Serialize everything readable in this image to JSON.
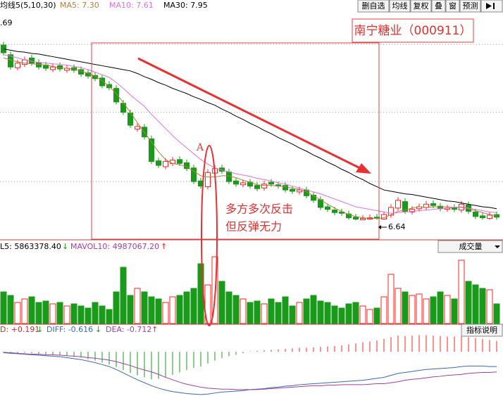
{
  "toolbar": {
    "buttons": [
      "删自选",
      "均线",
      "复权",
      "叠",
      "窗",
      "预测"
    ]
  },
  "chart_data": [
    {
      "type": "candlestick",
      "indicator": "均线5(5,10,30)",
      "title": "南宁糖业（000911）",
      "high_label": ".69",
      "low_label": "6.64",
      "annotation_point": "A",
      "annotation": [
        "多方多次反击",
        "但反弹无力"
      ],
      "ylim": [
        6.35,
        9.85
      ],
      "gridlines": [
        9.36,
        8.31,
        7.24
      ],
      "up_color": "#ff2020",
      "down_color": "#1a9a1a",
      "candles": {
        "open": [
          9.35,
          9.2,
          9.0,
          9.05,
          9.15,
          9.08,
          9.04,
          8.97,
          9.03,
          8.96,
          9.0,
          8.97,
          8.92,
          8.88,
          8.84,
          8.74,
          8.68,
          8.45,
          8.3,
          8.05,
          8.08,
          7.9,
          7.56,
          7.47,
          7.52,
          7.58,
          7.53,
          7.45,
          7.25,
          7.16,
          7.37,
          7.45,
          7.39,
          7.25,
          7.19,
          7.23,
          7.18,
          7.14,
          7.23,
          7.19,
          7.18,
          7.12,
          7.08,
          7.11,
          7.03,
          6.96,
          6.85,
          6.8,
          6.77,
          6.74,
          6.69,
          6.65,
          6.66,
          6.69,
          6.66,
          6.72,
          6.83,
          6.93,
          6.77,
          6.82,
          6.84,
          6.9,
          6.86,
          6.81,
          6.84,
          6.8,
          6.88,
          6.77,
          6.71,
          6.67,
          6.73
        ],
        "high": [
          9.4,
          9.25,
          9.12,
          9.17,
          9.2,
          9.13,
          9.09,
          9.06,
          9.08,
          9.04,
          9.05,
          9.02,
          8.97,
          8.93,
          8.89,
          8.79,
          8.73,
          8.5,
          8.35,
          8.14,
          8.13,
          7.95,
          7.61,
          7.6,
          7.62,
          7.63,
          7.58,
          7.5,
          7.3,
          7.43,
          7.49,
          7.5,
          7.44,
          7.3,
          7.27,
          7.28,
          7.23,
          7.25,
          7.28,
          7.24,
          7.23,
          7.17,
          7.16,
          7.16,
          7.08,
          7.01,
          6.9,
          6.85,
          6.82,
          6.79,
          6.74,
          6.72,
          6.73,
          6.74,
          6.78,
          6.89,
          7.0,
          6.98,
          6.86,
          6.9,
          6.94,
          6.95,
          6.91,
          6.88,
          6.89,
          6.94,
          6.93,
          6.82,
          6.76,
          6.77,
          6.78
        ],
        "low": [
          9.19,
          8.97,
          8.96,
          9.01,
          9.03,
          8.97,
          8.95,
          8.93,
          8.94,
          8.92,
          8.92,
          8.86,
          8.83,
          8.79,
          8.68,
          8.65,
          8.43,
          8.27,
          8.07,
          8.01,
          7.89,
          7.51,
          7.45,
          7.43,
          7.48,
          7.48,
          7.4,
          7.2,
          7.13,
          7.12,
          7.33,
          7.36,
          7.2,
          7.16,
          7.15,
          7.13,
          7.09,
          7.1,
          7.16,
          7.13,
          7.07,
          7.05,
          7.04,
          6.98,
          6.91,
          6.8,
          6.77,
          6.72,
          6.71,
          6.65,
          6.64,
          6.65,
          6.65,
          6.65,
          6.65,
          6.68,
          6.79,
          6.74,
          6.73,
          6.78,
          6.8,
          6.83,
          6.78,
          6.77,
          6.77,
          6.76,
          6.74,
          6.66,
          6.65,
          6.65,
          6.65
        ],
        "close": [
          9.23,
          9.01,
          9.07,
          9.12,
          9.07,
          9.01,
          8.99,
          9.01,
          8.98,
          8.99,
          8.96,
          8.9,
          8.87,
          8.83,
          8.72,
          8.69,
          8.47,
          8.31,
          8.11,
          8.09,
          7.93,
          7.55,
          7.49,
          7.55,
          7.57,
          7.52,
          7.44,
          7.24,
          7.17,
          7.38,
          7.44,
          7.4,
          7.24,
          7.2,
          7.22,
          7.17,
          7.13,
          7.2,
          7.2,
          7.17,
          7.11,
          7.09,
          7.11,
          7.02,
          6.95,
          6.84,
          6.81,
          6.76,
          6.75,
          6.68,
          6.66,
          6.67,
          6.68,
          6.67,
          6.73,
          6.84,
          6.95,
          6.78,
          6.81,
          6.85,
          6.89,
          6.87,
          6.82,
          6.83,
          6.81,
          6.89,
          6.78,
          6.7,
          6.68,
          6.72,
          6.69
        ]
      },
      "series": [
        {
          "name": "MA5: 7.30",
          "color": "#b0803a",
          "values": [
            9.15,
            9.12,
            9.09,
            9.07,
            9.06,
            9.05,
            9.04,
            9.02,
            9.0,
            8.99,
            8.98,
            8.95,
            8.91,
            8.87,
            8.8,
            8.71,
            8.6,
            8.46,
            8.31,
            8.15,
            8.0,
            7.85,
            7.7,
            7.58,
            7.52,
            7.5,
            7.47,
            7.4,
            7.33,
            7.31,
            7.31,
            7.33,
            7.33,
            7.3,
            7.26,
            7.23,
            7.19,
            7.18,
            7.18,
            7.17,
            7.16,
            7.14,
            7.12,
            7.08,
            7.02,
            6.96,
            6.89,
            6.83,
            6.78,
            6.73,
            6.7,
            6.68,
            6.67,
            6.67,
            6.68,
            6.73,
            6.78,
            6.8,
            6.83,
            6.85,
            6.84,
            6.85,
            6.85,
            6.85,
            6.84,
            6.84,
            6.82,
            6.79,
            6.76,
            6.73,
            6.71
          ]
        },
        {
          "name": "MA10: 7.61",
          "color": "#e070e0",
          "values": [
            9.2,
            9.18,
            9.15,
            9.12,
            9.1,
            9.08,
            9.07,
            9.06,
            9.05,
            9.04,
            9.02,
            9.0,
            8.97,
            8.93,
            8.89,
            8.85,
            8.77,
            8.68,
            8.58,
            8.49,
            8.4,
            8.28,
            8.17,
            8.06,
            7.95,
            7.85,
            7.76,
            7.67,
            7.58,
            7.51,
            7.45,
            7.42,
            7.39,
            7.36,
            7.34,
            7.32,
            7.29,
            7.27,
            7.25,
            7.22,
            7.2,
            7.17,
            7.14,
            7.11,
            7.08,
            7.05,
            7.01,
            6.97,
            6.93,
            6.89,
            6.85,
            6.83,
            6.81,
            6.79,
            6.77,
            6.75,
            6.76,
            6.77,
            6.78,
            6.79,
            6.8,
            6.81,
            6.82,
            6.83,
            6.84,
            6.85,
            6.83,
            6.81,
            6.79,
            6.77,
            6.76
          ]
        },
        {
          "name": "MA30: 7.95",
          "color": "#000000",
          "values": [
            9.29,
            9.27,
            9.25,
            9.24,
            9.22,
            9.21,
            9.19,
            9.17,
            9.15,
            9.13,
            9.11,
            9.09,
            9.07,
            9.05,
            9.03,
            9.01,
            8.99,
            8.97,
            8.95,
            8.91,
            8.86,
            8.82,
            8.77,
            8.73,
            8.68,
            8.64,
            8.6,
            8.55,
            8.51,
            8.46,
            8.42,
            8.36,
            8.31,
            8.25,
            8.2,
            8.14,
            8.09,
            8.03,
            7.98,
            7.92,
            7.87,
            7.82,
            7.76,
            7.71,
            7.65,
            7.6,
            7.54,
            7.49,
            7.43,
            7.38,
            7.32,
            7.27,
            7.21,
            7.16,
            7.11,
            7.09,
            7.07,
            7.05,
            7.04,
            7.02,
            7.0,
            6.98,
            6.96,
            6.94,
            6.93,
            6.91,
            6.89,
            6.87,
            6.85,
            6.84,
            6.82
          ]
        }
      ]
    },
    {
      "type": "volume",
      "selector": "成交量",
      "legend": [
        {
          "name": "L5: 5863378.40",
          "arrow": "↓"
        },
        {
          "name": "MAVOL10: 4987067.20",
          "arrow": "↑"
        }
      ],
      "ylim": [
        0,
        13800000
      ],
      "values": [
        5400000,
        4800000,
        3600000,
        4200000,
        4560000,
        3600000,
        3840000,
        3360000,
        3600000,
        3000000,
        3360000,
        3000000,
        2640000,
        3600000,
        3000000,
        2400000,
        5400000,
        9600000,
        4800000,
        6000000,
        5400000,
        4560000,
        4200000,
        3600000,
        4560000,
        4800000,
        5400000,
        6000000,
        10200000,
        6600000,
        11400000,
        7200000,
        5400000,
        4800000,
        4200000,
        3600000,
        3840000,
        3360000,
        4200000,
        3600000,
        4560000,
        3000000,
        3600000,
        4200000,
        4800000,
        3840000,
        3600000,
        3000000,
        2640000,
        3360000,
        3600000,
        3000000,
        2400000,
        2640000,
        4560000,
        8400000,
        6000000,
        5400000,
        4800000,
        5040000,
        4200000,
        4560000,
        5400000,
        4800000,
        4200000,
        10800000,
        7200000,
        6600000,
        6000000,
        5760000,
        3360000
      ]
    },
    {
      "type": "macd",
      "button": "指标说明",
      "macd_label": {
        "name": "D: +0.191",
        "arrow": "↓"
      },
      "ylim": [
        -0.9,
        0.36
      ],
      "up_color": "#ff2020",
      "down_color": "#1a9a1a",
      "histogram": [
        -0.02,
        -0.03,
        -0.03,
        -0.02,
        -0.03,
        -0.04,
        -0.05,
        -0.06,
        -0.07,
        -0.08,
        -0.1,
        -0.12,
        -0.15,
        -0.18,
        -0.22,
        -0.26,
        -0.31,
        -0.37,
        -0.43,
        -0.48,
        -0.52,
        -0.56,
        -0.55,
        -0.52,
        -0.47,
        -0.42,
        -0.37,
        -0.33,
        -0.3,
        -0.24,
        -0.18,
        -0.13,
        -0.09,
        -0.06,
        -0.03,
        0.01,
        0.02,
        0.03,
        0.04,
        0.05,
        0.06,
        0.07,
        0.08,
        0.08,
        0.09,
        0.1,
        0.11,
        0.12,
        0.13,
        0.15,
        0.17,
        0.19,
        0.21,
        0.23,
        0.26,
        0.3,
        0.33,
        0.32,
        0.33,
        0.34,
        0.34,
        0.33,
        0.32,
        0.31,
        0.31,
        0.32,
        0.3,
        0.28,
        0.26,
        0.24,
        0.22
      ],
      "series": [
        {
          "name": "DIFF: -0.616",
          "arrow": "↓",
          "color": "#3a6ab0",
          "values": [
            -0.02,
            -0.03,
            -0.04,
            -0.05,
            -0.06,
            -0.07,
            -0.08,
            -0.09,
            -0.1,
            -0.12,
            -0.14,
            -0.16,
            -0.19,
            -0.22,
            -0.26,
            -0.3,
            -0.36,
            -0.43,
            -0.5,
            -0.57,
            -0.63,
            -0.69,
            -0.74,
            -0.78,
            -0.81,
            -0.83,
            -0.85,
            -0.86,
            -0.87,
            -0.86,
            -0.84,
            -0.82,
            -0.81,
            -0.8,
            -0.79,
            -0.77,
            -0.76,
            -0.75,
            -0.73,
            -0.72,
            -0.7,
            -0.69,
            -0.67,
            -0.66,
            -0.65,
            -0.64,
            -0.63,
            -0.62,
            -0.61,
            -0.6,
            -0.59,
            -0.58,
            -0.56,
            -0.54,
            -0.52,
            -0.48,
            -0.44,
            -0.42,
            -0.4,
            -0.38,
            -0.36,
            -0.35,
            -0.34,
            -0.33,
            -0.32,
            -0.3,
            -0.29,
            -0.29,
            -0.29,
            -0.3,
            -0.3
          ]
        },
        {
          "name": "DEA: -0.712",
          "arrow": "↑",
          "color": "#a040a0",
          "values": [
            -0.01,
            -0.02,
            -0.03,
            -0.04,
            -0.05,
            -0.05,
            -0.06,
            -0.06,
            -0.07,
            -0.08,
            -0.09,
            -0.1,
            -0.12,
            -0.13,
            -0.15,
            -0.17,
            -0.2,
            -0.24,
            -0.28,
            -0.33,
            -0.37,
            -0.41,
            -0.46,
            -0.52,
            -0.57,
            -0.62,
            -0.66,
            -0.69,
            -0.72,
            -0.74,
            -0.75,
            -0.76,
            -0.76,
            -0.77,
            -0.77,
            -0.77,
            -0.77,
            -0.76,
            -0.75,
            -0.74,
            -0.73,
            -0.72,
            -0.71,
            -0.7,
            -0.69,
            -0.69,
            -0.68,
            -0.68,
            -0.67,
            -0.67,
            -0.67,
            -0.67,
            -0.66,
            -0.65,
            -0.65,
            -0.63,
            -0.61,
            -0.58,
            -0.56,
            -0.55,
            -0.53,
            -0.51,
            -0.5,
            -0.48,
            -0.47,
            -0.46,
            -0.44,
            -0.43,
            -0.42,
            -0.42,
            -0.41
          ]
        }
      ]
    }
  ]
}
